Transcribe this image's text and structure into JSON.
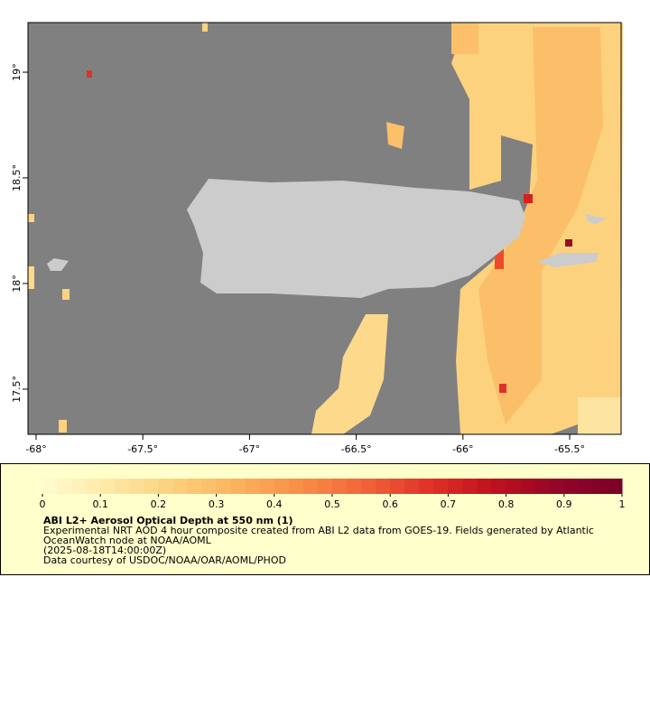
{
  "map": {
    "lon_lim": [
      -68.038,
      -65.259
    ],
    "lat_lim": [
      17.286,
      19.235
    ],
    "lon_ticks": [
      {
        "value": -68,
        "label": "-68°"
      },
      {
        "value": -67.5,
        "label": "-67.5°"
      },
      {
        "value": -67,
        "label": "-67°"
      },
      {
        "value": -66.5,
        "label": "-66.5°"
      },
      {
        "value": -66,
        "label": "-66°"
      },
      {
        "value": -65.5,
        "label": "-65.5°"
      }
    ],
    "lat_ticks": [
      {
        "value": 17.5,
        "label": "17.5°"
      },
      {
        "value": 18,
        "label": "18°"
      },
      {
        "value": 18.5,
        "label": "18.5°"
      },
      {
        "value": 19,
        "label": "19°"
      }
    ]
  },
  "colorbar": {
    "range": [
      0,
      1
    ],
    "ticks": [
      0,
      0.1,
      0.2,
      0.3,
      0.4,
      0.5,
      0.6,
      0.7,
      0.8,
      0.9,
      1
    ],
    "colors": [
      "#fffbd2",
      "#fee9a6",
      "#fdd17e",
      "#fcb35e",
      "#f98e47",
      "#f2643a",
      "#e03127",
      "#c0101e",
      "#93052a",
      "#7a0026"
    ]
  },
  "legend": {
    "title": "ABI L2+ Aerosol Optical Depth at 550 nm (1)",
    "lines": [
      "Experimental NRT AOD 4 hour composite created from ABI L2 data from GOES-19. Fields generated by Atlantic",
      "OceanWatch node at NOAA/AOML",
      "(2025-08-18T14:00:00Z)",
      "Data courtesy of USDOC/NOAA/OAR/AOML/PHOD"
    ]
  }
}
